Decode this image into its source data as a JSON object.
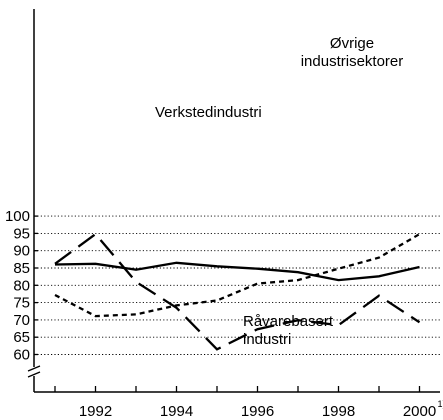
{
  "chart_data": {
    "type": "line",
    "x": [
      1991,
      1992,
      1993,
      1994,
      1995,
      1996,
      1997,
      1998,
      1999,
      2000
    ],
    "ylim": [
      55,
      100
    ],
    "ybreak_below": 60,
    "grid": "horizontal dotted",
    "y_ticks": [
      "60",
      "65",
      "70",
      "75",
      "80",
      "85",
      "90",
      "95",
      "100"
    ],
    "x_ticks": [
      "1992",
      "1994",
      "1996",
      "1998",
      "2000"
    ],
    "x_last_tick_footnote": "1)",
    "series": [
      {
        "name": "Verkstedindustri",
        "style": "solid",
        "values": [
          86.0,
          86.2,
          84.5,
          86.5,
          85.5,
          84.8,
          83.8,
          81.5,
          82.6,
          85.3
        ]
      },
      {
        "name": "Råvarebasert industri",
        "label_lines": [
          "Råvarebasert",
          "industri"
        ],
        "style": "long-dash",
        "values": [
          86.2,
          94.8,
          81.0,
          73.5,
          61.5,
          67.3,
          69.9,
          68.5,
          77.0,
          69.3
        ]
      },
      {
        "name": "Øvrige industrisektorer",
        "label_lines": [
          "Øvrige",
          "industrisektorer"
        ],
        "style": "short-dash",
        "values": [
          77.2,
          71.1,
          71.6,
          74.2,
          75.6,
          80.5,
          81.5,
          84.8,
          88.0,
          94.8
        ]
      }
    ]
  }
}
